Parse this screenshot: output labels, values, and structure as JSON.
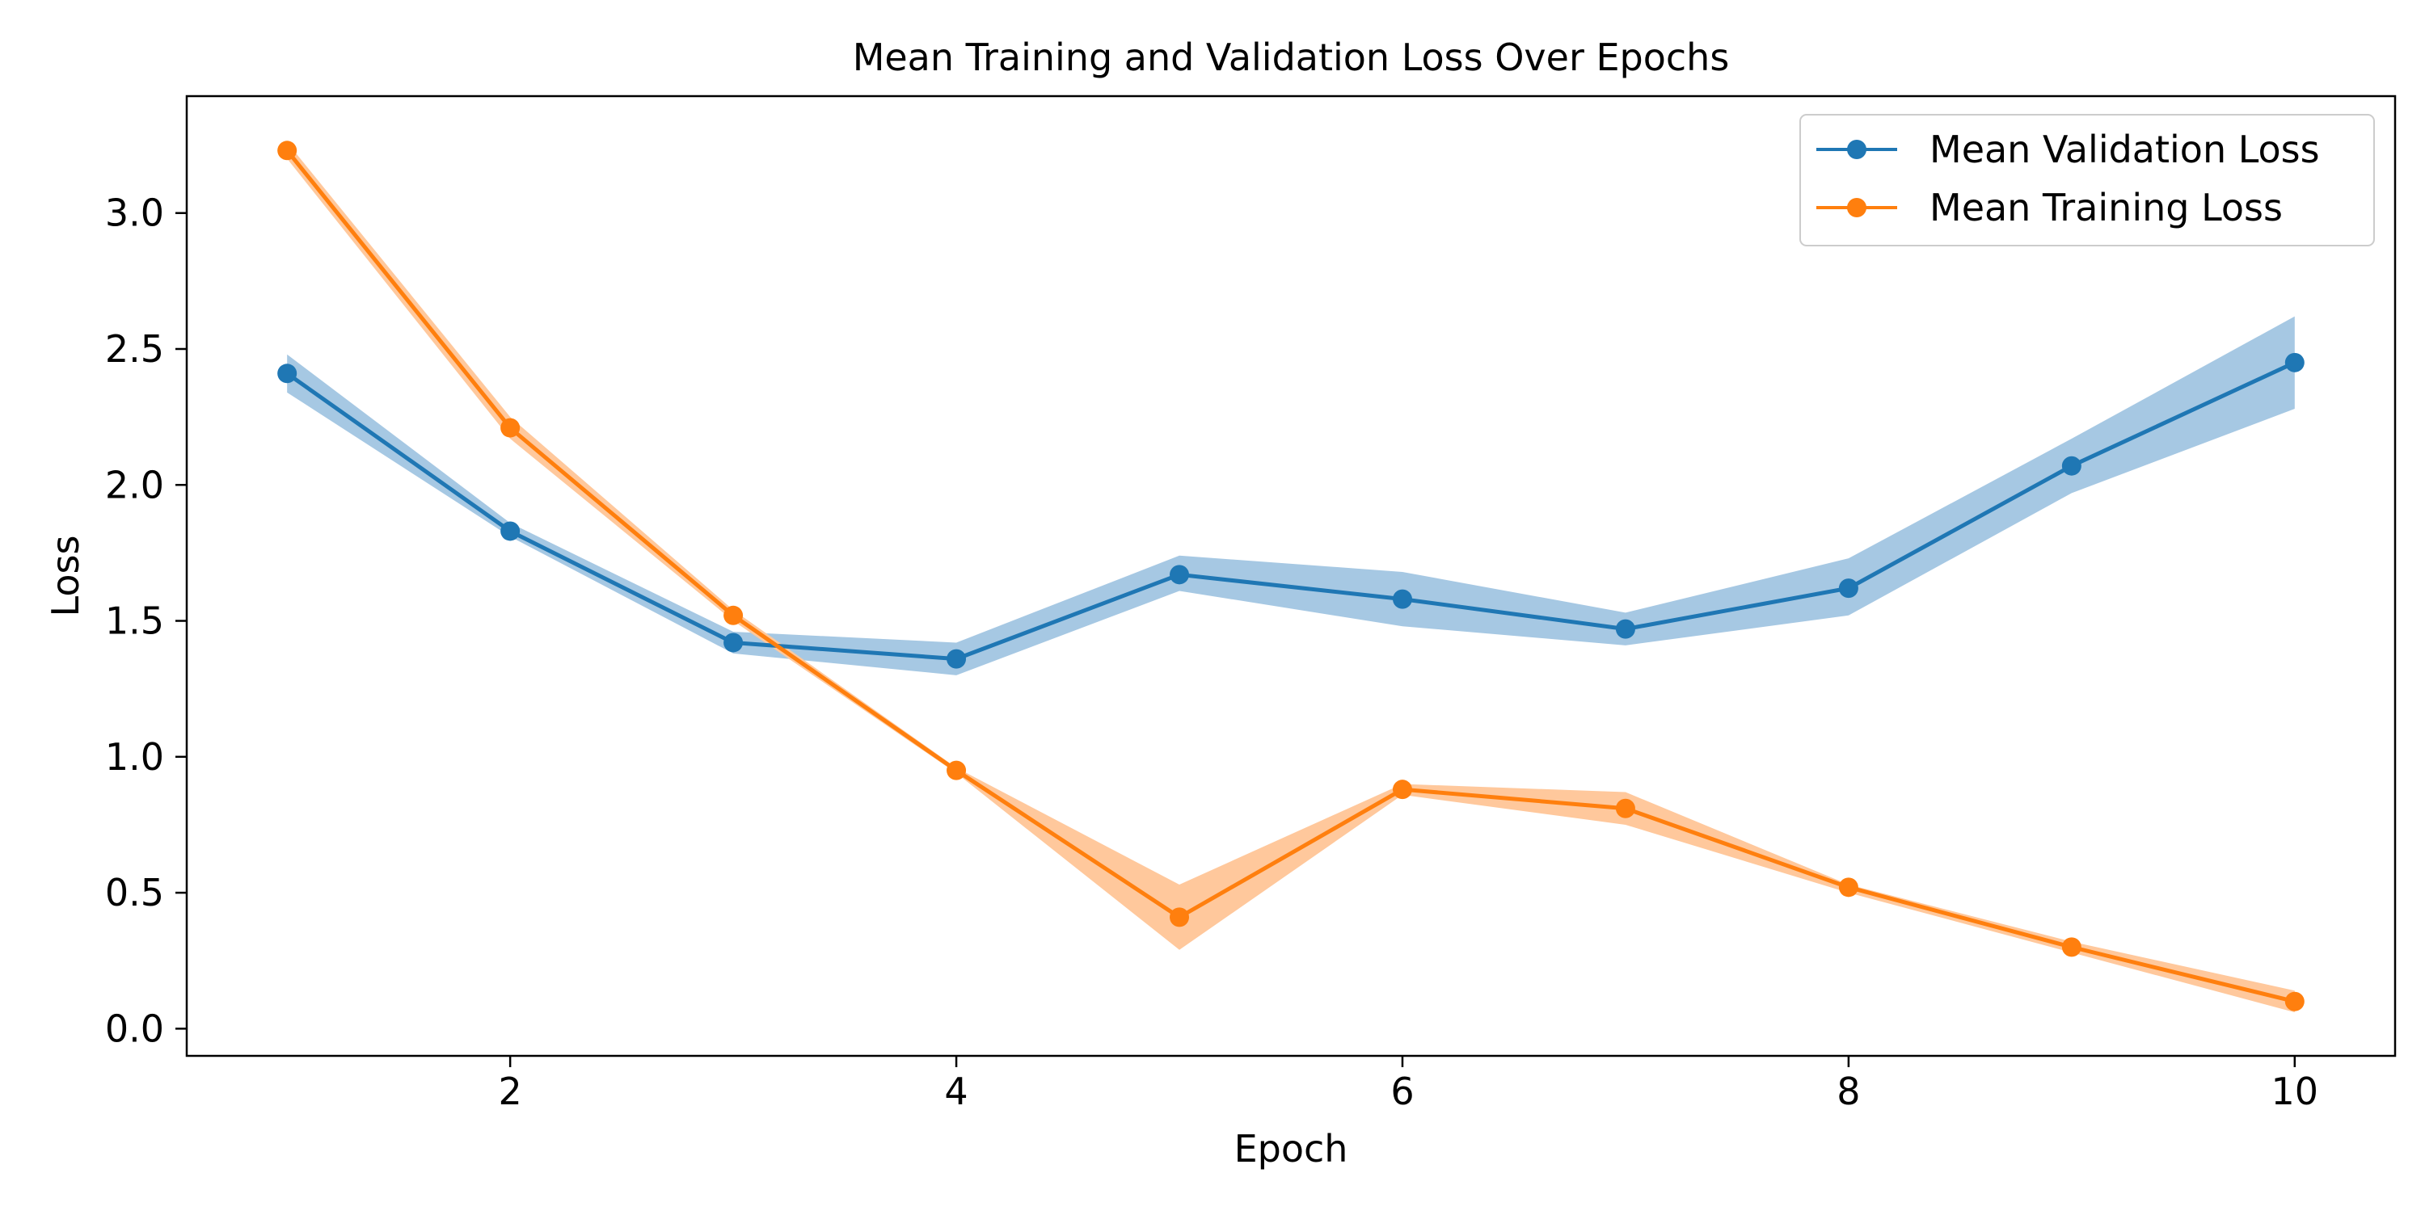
{
  "chart_data": {
    "type": "line",
    "title": "Mean Training and Validation Loss Over Epochs",
    "xlabel": "Epoch",
    "ylabel": "Loss",
    "xlim": [
      0.55,
      10.45
    ],
    "ylim": [
      -0.1,
      3.43
    ],
    "xticks": [
      2,
      4,
      6,
      8,
      10
    ],
    "xtick_labels": [
      "2",
      "4",
      "6",
      "8",
      "10"
    ],
    "yticks": [
      0.0,
      0.5,
      1.0,
      1.5,
      2.0,
      2.5,
      3.0
    ],
    "ytick_labels": [
      "0.0",
      "0.5",
      "1.0",
      "1.5",
      "2.0",
      "2.5",
      "3.0"
    ],
    "grid": false,
    "legend_position": "top-right",
    "x": [
      1,
      2,
      3,
      4,
      5,
      6,
      7,
      8,
      9,
      10
    ],
    "series": [
      {
        "name": "Mean Validation Loss",
        "color": "#1f77b4",
        "band_color": "#a6c8e3",
        "values": [
          2.41,
          1.83,
          1.42,
          1.36,
          1.67,
          1.58,
          1.47,
          1.62,
          2.07,
          2.45
        ],
        "band_low": [
          2.34,
          1.81,
          1.38,
          1.3,
          1.61,
          1.48,
          1.41,
          1.52,
          1.97,
          2.28
        ],
        "band_high": [
          2.48,
          1.86,
          1.46,
          1.42,
          1.74,
          1.68,
          1.53,
          1.73,
          2.17,
          2.62
        ]
      },
      {
        "name": "Mean Training Loss",
        "color": "#ff7f0e",
        "band_color": "#ffc89c",
        "values": [
          3.23,
          2.21,
          1.52,
          0.95,
          0.41,
          0.88,
          0.81,
          0.52,
          0.3,
          0.1
        ],
        "band_low": [
          3.2,
          2.17,
          1.5,
          0.94,
          0.29,
          0.86,
          0.75,
          0.5,
          0.28,
          0.06
        ],
        "band_high": [
          3.26,
          2.25,
          1.54,
          0.96,
          0.53,
          0.9,
          0.87,
          0.53,
          0.32,
          0.14
        ]
      }
    ]
  }
}
